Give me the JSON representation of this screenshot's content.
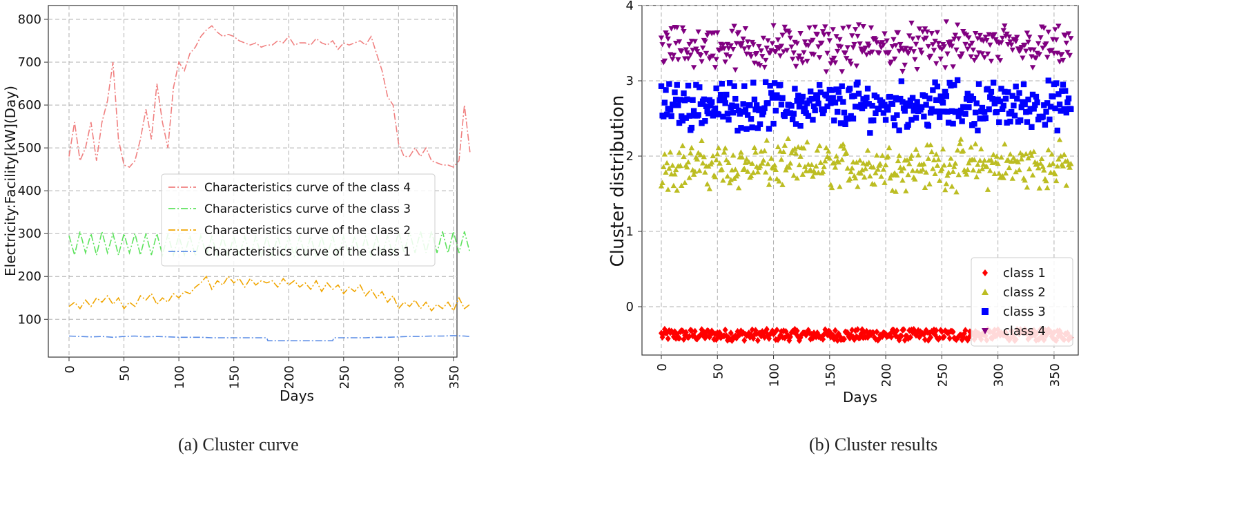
{
  "captions": {
    "a": "(a) Cluster curve",
    "b": "(b) Cluster results"
  },
  "chart_data": [
    {
      "type": "line",
      "title": "",
      "xlabel": "Days",
      "ylabel": "Electricity:Facility[kW](Day)",
      "xlim": [
        0,
        365
      ],
      "ylim": [
        0,
        800
      ],
      "xticks": [
        0,
        50,
        100,
        150,
        200,
        250,
        300,
        350
      ],
      "yticks": [
        100,
        200,
        300,
        400,
        500,
        600,
        700,
        800
      ],
      "grid": true,
      "legend_position": "center",
      "series": [
        {
          "name": "Characteristics curve of the class 4",
          "color": "#f08080",
          "dash": "dashdot",
          "x": [
            0,
            5,
            10,
            15,
            20,
            25,
            30,
            35,
            40,
            45,
            50,
            55,
            60,
            65,
            70,
            75,
            80,
            85,
            90,
            95,
            100,
            105,
            110,
            115,
            120,
            125,
            130,
            135,
            140,
            145,
            150,
            155,
            160,
            165,
            170,
            175,
            180,
            185,
            190,
            195,
            200,
            205,
            210,
            215,
            220,
            225,
            230,
            235,
            240,
            245,
            250,
            255,
            260,
            265,
            270,
            275,
            280,
            285,
            290,
            295,
            300,
            305,
            310,
            315,
            320,
            325,
            330,
            335,
            340,
            345,
            350,
            355,
            360,
            365
          ],
          "values": [
            480,
            560,
            470,
            500,
            560,
            470,
            560,
            610,
            700,
            520,
            460,
            455,
            470,
            520,
            590,
            520,
            650,
            560,
            500,
            640,
            700,
            680,
            720,
            735,
            760,
            775,
            785,
            770,
            760,
            765,
            760,
            750,
            745,
            740,
            745,
            735,
            740,
            740,
            750,
            745,
            760,
            740,
            745,
            745,
            740,
            755,
            745,
            740,
            750,
            730,
            745,
            740,
            745,
            750,
            740,
            760,
            720,
            680,
            620,
            600,
            510,
            480,
            480,
            500,
            480,
            500,
            470,
            465,
            460,
            460,
            455,
            470,
            600,
            490
          ]
        },
        {
          "name": "Characteristics curve of the class 3",
          "color": "#5ee35e",
          "dash": "dashdot",
          "x": [
            0,
            5,
            10,
            15,
            20,
            25,
            30,
            35,
            40,
            45,
            50,
            55,
            60,
            65,
            70,
            75,
            80,
            85,
            90,
            95,
            100,
            105,
            110,
            115,
            120,
            125,
            130,
            135,
            140,
            145,
            150,
            155,
            160,
            165,
            170,
            175,
            180,
            185,
            190,
            195,
            200,
            205,
            210,
            215,
            220,
            225,
            230,
            235,
            240,
            245,
            250,
            255,
            260,
            265,
            270,
            275,
            280,
            285,
            290,
            295,
            300,
            305,
            310,
            315,
            320,
            325,
            330,
            335,
            340,
            345,
            350,
            355,
            360,
            365
          ],
          "values": [
            295,
            250,
            305,
            255,
            300,
            250,
            305,
            255,
            300,
            250,
            300,
            255,
            300,
            250,
            300,
            250,
            300,
            250,
            298,
            250,
            295,
            250,
            295,
            248,
            295,
            250,
            293,
            248,
            293,
            248,
            293,
            248,
            293,
            248,
            293,
            248,
            293,
            248,
            293,
            248,
            293,
            248,
            293,
            248,
            293,
            248,
            293,
            248,
            293,
            248,
            293,
            248,
            293,
            248,
            293,
            248,
            293,
            248,
            295,
            250,
            305,
            255,
            305,
            255,
            305,
            255,
            305,
            255,
            305,
            255,
            305,
            255,
            305,
            255
          ]
        },
        {
          "name": "Characteristics curve of the class 2",
          "color": "#f0a500",
          "dash": "dashdot",
          "x": [
            0,
            5,
            10,
            15,
            20,
            25,
            30,
            35,
            40,
            45,
            50,
            55,
            60,
            65,
            70,
            75,
            80,
            85,
            90,
            95,
            100,
            105,
            110,
            115,
            120,
            125,
            130,
            135,
            140,
            145,
            150,
            155,
            160,
            165,
            170,
            175,
            180,
            185,
            190,
            195,
            200,
            205,
            210,
            215,
            220,
            225,
            230,
            235,
            240,
            245,
            250,
            255,
            260,
            265,
            270,
            275,
            280,
            285,
            290,
            295,
            300,
            305,
            310,
            315,
            320,
            325,
            330,
            335,
            340,
            345,
            350,
            355,
            360,
            365
          ],
          "values": [
            130,
            140,
            125,
            145,
            130,
            150,
            140,
            155,
            135,
            150,
            125,
            140,
            130,
            155,
            145,
            160,
            135,
            150,
            140,
            160,
            150,
            165,
            160,
            175,
            185,
            200,
            170,
            190,
            180,
            200,
            185,
            195,
            175,
            195,
            180,
            190,
            185,
            190,
            175,
            195,
            180,
            190,
            175,
            185,
            170,
            190,
            165,
            185,
            170,
            180,
            160,
            175,
            165,
            180,
            155,
            170,
            150,
            165,
            140,
            155,
            125,
            140,
            130,
            145,
            125,
            140,
            120,
            135,
            125,
            140,
            120,
            150,
            125,
            135
          ]
        },
        {
          "name": "Characteristics curve of the class 1",
          "color": "#5b8de6",
          "dash": "dashdot",
          "x": [
            0,
            10,
            20,
            30,
            40,
            50,
            60,
            70,
            80,
            90,
            100,
            110,
            120,
            130,
            140,
            150,
            160,
            170,
            180,
            181,
            190,
            200,
            210,
            220,
            230,
            240,
            241,
            250,
            260,
            270,
            280,
            290,
            300,
            310,
            320,
            330,
            340,
            350,
            360,
            365
          ],
          "values": [
            61,
            60,
            59,
            60,
            58,
            60,
            61,
            59,
            60,
            59,
            58,
            58,
            58,
            57,
            57,
            57,
            57,
            57,
            57,
            50,
            50,
            50,
            50,
            50,
            50,
            50,
            57,
            57,
            57,
            57,
            58,
            58,
            59,
            60,
            60,
            61,
            61,
            62,
            61,
            60
          ]
        }
      ]
    },
    {
      "type": "scatter",
      "title": "",
      "xlabel": "Days",
      "ylabel": "Cluster distribution",
      "xlim": [
        0,
        365
      ],
      "ylim": [
        -0.5,
        4
      ],
      "xticks": [
        0,
        50,
        100,
        150,
        200,
        250,
        300,
        350
      ],
      "yticks": [
        0,
        1,
        2,
        3,
        4
      ],
      "grid": true,
      "legend_position": "lower-right",
      "series": [
        {
          "name": "class 1",
          "color": "#ff0000",
          "marker": "diamond",
          "band": [
            -0.45,
            -0.3
          ]
        },
        {
          "name": "class 2",
          "color": "#bcbd22",
          "marker": "triangle-up",
          "band": [
            1.5,
            2.25
          ]
        },
        {
          "name": "class 3",
          "color": "#0000ff",
          "marker": "square",
          "band": [
            2.3,
            3.05
          ]
        },
        {
          "name": "class 4",
          "color": "#800080",
          "marker": "triangle-down",
          "band": [
            3.1,
            3.8
          ]
        }
      ]
    }
  ]
}
